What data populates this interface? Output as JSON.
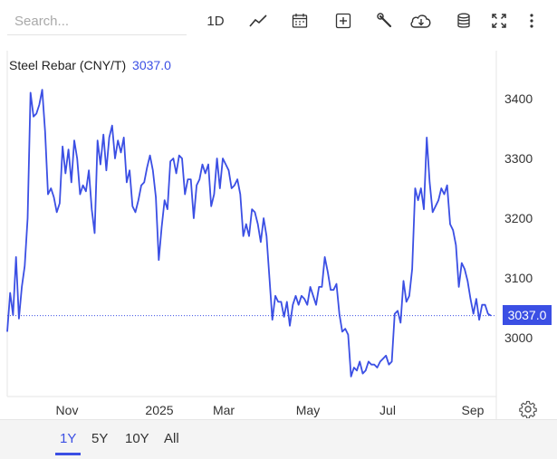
{
  "toolbar": {
    "search_placeholder": "Search...",
    "interval_label": "1D",
    "icons": [
      "line-chart-icon",
      "calendar-icon",
      "add-indicator-icon",
      "wrench-icon",
      "cloud-download-icon",
      "database-icon",
      "fullscreen-icon",
      "more-icon"
    ]
  },
  "chart": {
    "symbol_label": "Steel Rebar (CNY/T)",
    "last_value": "3037.0",
    "price_tag": "3037.0",
    "line_color": "#3b4fe4"
  },
  "chart_data": {
    "type": "line",
    "y_axis_ticks": [
      "3400",
      "3300",
      "3200",
      "3100",
      "3000"
    ],
    "ylim": [
      2900,
      3420
    ],
    "x_axis_ticks": [
      "Nov",
      "2025",
      "Mar",
      "May",
      "Jul",
      "Sep"
    ],
    "last_value": 3037.0,
    "series": [
      {
        "values": [
          3010,
          3075,
          3038,
          3135,
          3032,
          3085,
          3120,
          3200,
          3410,
          3370,
          3375,
          3390,
          3415,
          3345,
          3240,
          3250,
          3235,
          3210,
          3225,
          3320,
          3275,
          3315,
          3260,
          3330,
          3300,
          3240,
          3255,
          3245,
          3280,
          3215,
          3175,
          3330,
          3290,
          3340,
          3280,
          3335,
          3355,
          3300,
          3330,
          3310,
          3335,
          3260,
          3280,
          3220,
          3210,
          3230,
          3255,
          3260,
          3285,
          3305,
          3280,
          3235,
          3130,
          3185,
          3230,
          3215,
          3295,
          3300,
          3275,
          3305,
          3300,
          3240,
          3265,
          3265,
          3200,
          3255,
          3265,
          3290,
          3275,
          3290,
          3220,
          3240,
          3300,
          3250,
          3300,
          3290,
          3280,
          3250,
          3255,
          3265,
          3240,
          3170,
          3190,
          3170,
          3215,
          3210,
          3190,
          3160,
          3200,
          3170,
          3100,
          3030,
          3070,
          3060,
          3060,
          3035,
          3060,
          3020,
          3055,
          3070,
          3055,
          3070,
          3065,
          3055,
          3085,
          3070,
          3055,
          3085,
          3085,
          3135,
          3110,
          3080,
          3080,
          3090,
          3040,
          3010,
          3015,
          3005,
          2935,
          2950,
          2945,
          2960,
          2940,
          2945,
          2960,
          2955,
          2955,
          2950,
          2960,
          2965,
          2970,
          2955,
          2960,
          3040,
          3045,
          3025,
          3095,
          3060,
          3070,
          3115,
          3250,
          3230,
          3250,
          3215,
          3335,
          3260,
          3210,
          3220,
          3230,
          3250,
          3240,
          3255,
          3190,
          3180,
          3155,
          3085,
          3125,
          3115,
          3095,
          3065,
          3040,
          3065,
          3030,
          3055,
          3055,
          3040,
          3037
        ]
      }
    ]
  },
  "footer": {
    "ranges": [
      "1Y",
      "5Y",
      "10Y",
      "All"
    ],
    "active_range": "1Y",
    "settings_icon": "gear-icon"
  }
}
